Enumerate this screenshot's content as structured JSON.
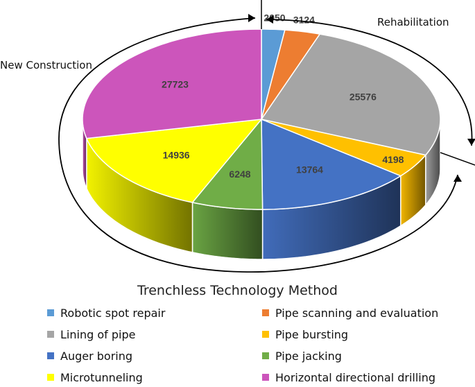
{
  "chart_data": {
    "type": "pie",
    "title": "Trenchless Technology Method",
    "series": [
      {
        "name": "Robotic spot repair",
        "value": 2050,
        "color": "#5B9BD5"
      },
      {
        "name": "Pipe scanning and evaluation",
        "value": 3124,
        "color": "#ED7D31"
      },
      {
        "name": "Lining of pipe",
        "value": 25576,
        "color": "#A5A5A5"
      },
      {
        "name": "Pipe bursting",
        "value": 4198,
        "color": "#FFC000"
      },
      {
        "name": "Auger boring",
        "value": 13764,
        "color": "#4472C4"
      },
      {
        "name": "Pipe jacking",
        "value": 6248,
        "color": "#70AD47"
      },
      {
        "name": "Microtunneling",
        "value": 14936,
        "color": "#FFFF00"
      },
      {
        "name": "Horizontal directional drilling",
        "value": 27723,
        "color": "#CC55BB"
      }
    ],
    "annotations": {
      "rehabilitation": "Rehabilitation",
      "new_construction": "New Construction"
    },
    "legend_placement": "bottom",
    "style": "3d"
  }
}
